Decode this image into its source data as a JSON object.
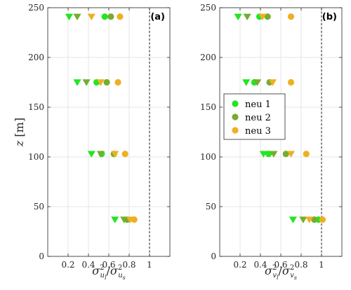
{
  "chart_data": [
    {
      "type": "scatter",
      "panel_label": "(a)",
      "xlabel_base": "σ",
      "xlabel_num_sub": "u",
      "xlabel_num_subsub": "l",
      "xlabel_den_sub": "u",
      "xlabel_den_subsub": "s",
      "xlabel_sup": "2",
      "ylabel": "z [m]",
      "xlim": [
        0,
        1.2
      ],
      "ylim": [
        0,
        250
      ],
      "xticks": [
        0.2,
        0.4,
        0.6,
        0.8,
        1
      ],
      "yticks": [
        0,
        50,
        100,
        150,
        200,
        250
      ],
      "xtick_labels": [
        "0.2",
        "0.4",
        "0.6",
        "0.8",
        "1"
      ],
      "ytick_labels": [
        "0",
        "50",
        "100",
        "150",
        "200",
        "250"
      ],
      "reference_line_x": 1,
      "grid": true,
      "series": [
        {
          "color": "#22e622",
          "marker": "circle",
          "x": [
            0.56,
            0.48,
            0.53,
            0.78
          ],
          "y": [
            241,
            175,
            103,
            37
          ]
        },
        {
          "color": "#77ac30",
          "marker": "circle",
          "x": [
            0.62,
            0.58,
            0.65,
            0.78
          ],
          "y": [
            241,
            175,
            103,
            37
          ]
        },
        {
          "color": "#edb120",
          "marker": "circle",
          "x": [
            0.71,
            0.69,
            0.76,
            0.85
          ],
          "y": [
            241,
            175,
            103,
            37
          ]
        },
        {
          "color": "#22e622",
          "marker": "triangle-down",
          "x": [
            0.21,
            0.29,
            0.43,
            0.66
          ],
          "y": [
            241,
            175,
            103,
            37
          ]
        },
        {
          "color": "#77ac30",
          "marker": "triangle-down",
          "x": [
            0.29,
            0.38,
            0.52,
            0.75
          ],
          "y": [
            241,
            175,
            103,
            37
          ]
        },
        {
          "color": "#edb120",
          "marker": "triangle-down",
          "x": [
            0.43,
            0.52,
            0.66,
            0.81
          ],
          "y": [
            241,
            175,
            103,
            37
          ]
        }
      ]
    },
    {
      "type": "scatter",
      "panel_label": "(b)",
      "xlabel_base": "σ",
      "xlabel_num_sub": "v",
      "xlabel_num_subsub": "l",
      "xlabel_den_sub": "v",
      "xlabel_den_subsub": "s",
      "xlabel_sup": "2",
      "ylabel": "",
      "xlim": [
        0,
        1.2
      ],
      "ylim": [
        0,
        250
      ],
      "xticks": [
        0.2,
        0.4,
        0.6,
        0.8,
        1
      ],
      "yticks": [
        0,
        50,
        100,
        150,
        200,
        250
      ],
      "xtick_labels": [
        "0.2",
        "0.4",
        "0.6",
        "0.8",
        "1"
      ],
      "ytick_labels": [
        "0",
        "50",
        "100",
        "150",
        "200",
        "250"
      ],
      "reference_line_x": 1,
      "grid": true,
      "legend": {
        "placement": "center-left",
        "entries": [
          {
            "label": "neu 1",
            "color": "#22e622"
          },
          {
            "label": "neu 2",
            "color": "#77ac30"
          },
          {
            "label": "neu 3",
            "color": "#edb120"
          }
        ]
      },
      "series": [
        {
          "color": "#22e622",
          "marker": "circle",
          "x": [
            0.39,
            0.34,
            0.48,
            0.97
          ],
          "y": [
            241,
            175,
            103,
            37
          ]
        },
        {
          "color": "#77ac30",
          "marker": "circle",
          "x": [
            0.47,
            0.49,
            0.65,
            0.93
          ],
          "y": [
            241,
            175,
            103,
            37
          ]
        },
        {
          "color": "#edb120",
          "marker": "circle",
          "x": [
            0.7,
            0.7,
            0.85,
            1.01
          ],
          "y": [
            241,
            175,
            103,
            37
          ]
        },
        {
          "color": "#22e622",
          "marker": "triangle-down",
          "x": [
            0.18,
            0.26,
            0.43,
            0.72
          ],
          "y": [
            241,
            175,
            103,
            37
          ]
        },
        {
          "color": "#77ac30",
          "marker": "triangle-down",
          "x": [
            0.27,
            0.37,
            0.53,
            0.82
          ],
          "y": [
            241,
            175,
            103,
            37
          ]
        },
        {
          "color": "#edb120",
          "marker": "triangle-down",
          "x": [
            0.42,
            0.52,
            0.7,
            0.88
          ],
          "y": [
            241,
            175,
            103,
            37
          ]
        }
      ]
    }
  ]
}
